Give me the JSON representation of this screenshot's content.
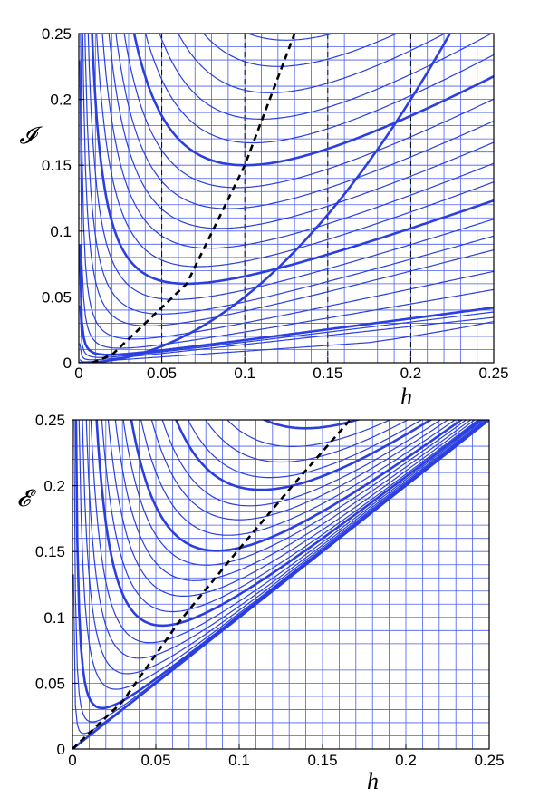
{
  "chart_data": [
    {
      "type": "line",
      "xlabel": "h",
      "ylabel": "𝓘",
      "xlim": [
        0,
        0.25
      ],
      "ylim": [
        0,
        0.25
      ],
      "x_ticks": [
        "0",
        "0.05",
        "0.1",
        "0.15",
        "0.2",
        "0.25"
      ],
      "y_ticks": [
        "0",
        "0.05",
        "0.1",
        "0.15",
        "0.2",
        "0.25"
      ],
      "grid": true,
      "colors": {
        "curve": "#2b3fe0",
        "grid": "#4a5ef0",
        "dashed": "#000000"
      },
      "vertical_dashed_x": [
        0.05,
        0.1,
        0.15,
        0.2
      ],
      "minimum_locus_dashed": [
        [
          0.008,
          0
        ],
        [
          0.02,
          0.006
        ],
        [
          0.065,
          0.06
        ],
        [
          0.1,
          0.15
        ],
        [
          0.13,
          0.25
        ]
      ],
      "envelope": {
        "x": [
          0.0,
          0.05,
          0.1,
          0.15,
          0.2,
          0.225
        ],
        "y": [
          0.0,
          0.0125,
          0.05,
          0.1125,
          0.2,
          0.25
        ]
      },
      "series": [
        {
          "min_x": 0.004,
          "min_y": 0.0007,
          "bold": false
        },
        {
          "min_x": 0.008,
          "min_y": 0.0022,
          "bold": false
        },
        {
          "min_x": 0.013,
          "min_y": 0.004,
          "bold": false
        },
        {
          "min_x": 0.018,
          "min_y": 0.006,
          "bold": true
        },
        {
          "min_x": 0.025,
          "min_y": 0.011,
          "bold": false
        },
        {
          "min_x": 0.033,
          "min_y": 0.018,
          "bold": false
        },
        {
          "min_x": 0.042,
          "min_y": 0.028,
          "bold": false
        },
        {
          "min_x": 0.05,
          "min_y": 0.037,
          "bold": false
        },
        {
          "min_x": 0.058,
          "min_y": 0.048,
          "bold": false
        },
        {
          "min_x": 0.065,
          "min_y": 0.06,
          "bold": true
        },
        {
          "min_x": 0.072,
          "min_y": 0.073,
          "bold": false
        },
        {
          "min_x": 0.079,
          "min_y": 0.087,
          "bold": false
        },
        {
          "min_x": 0.085,
          "min_y": 0.102,
          "bold": false
        },
        {
          "min_x": 0.09,
          "min_y": 0.117,
          "bold": false
        },
        {
          "min_x": 0.095,
          "min_y": 0.133,
          "bold": false
        },
        {
          "min_x": 0.1,
          "min_y": 0.15,
          "bold": true
        },
        {
          "min_x": 0.105,
          "min_y": 0.167,
          "bold": false
        },
        {
          "min_x": 0.11,
          "min_y": 0.185,
          "bold": false
        },
        {
          "min_x": 0.115,
          "min_y": 0.205,
          "bold": false
        },
        {
          "min_x": 0.12,
          "min_y": 0.225,
          "bold": false
        },
        {
          "min_x": 0.125,
          "min_y": 0.245,
          "bold": false
        }
      ]
    },
    {
      "type": "line",
      "xlabel": "h",
      "ylabel": "𝓔",
      "xlim": [
        0,
        0.25
      ],
      "ylim": [
        0,
        0.25
      ],
      "x_ticks": [
        "0",
        "0.05",
        "0.1",
        "0.15",
        "0.2",
        "0.25"
      ],
      "y_ticks": [
        "0",
        "0.05",
        "0.1",
        "0.15",
        "0.2",
        "0.25"
      ],
      "grid": true,
      "colors": {
        "curve": "#2b3fe0",
        "grid": "#4a5ef0",
        "dashed": "#000000"
      },
      "minimum_locus_dashed": [
        [
          0.0,
          0.0
        ],
        [
          0.03,
          0.036
        ],
        [
          0.063,
          0.095
        ],
        [
          0.1,
          0.152
        ],
        [
          0.132,
          0.2
        ],
        [
          0.168,
          0.252
        ]
      ],
      "envelope": {
        "x": [
          0.0,
          0.25
        ],
        "y": [
          0.0,
          0.25
        ]
      },
      "series": [
        {
          "min_x": 0.008,
          "min_y": 0.012,
          "bold": false
        },
        {
          "min_x": 0.014,
          "min_y": 0.021,
          "bold": false
        },
        {
          "min_x": 0.022,
          "min_y": 0.032,
          "bold": true
        },
        {
          "min_x": 0.03,
          "min_y": 0.046,
          "bold": false
        },
        {
          "min_x": 0.038,
          "min_y": 0.058,
          "bold": false
        },
        {
          "min_x": 0.046,
          "min_y": 0.07,
          "bold": false
        },
        {
          "min_x": 0.054,
          "min_y": 0.082,
          "bold": false
        },
        {
          "min_x": 0.062,
          "min_y": 0.095,
          "bold": true
        },
        {
          "min_x": 0.07,
          "min_y": 0.106,
          "bold": false
        },
        {
          "min_x": 0.078,
          "min_y": 0.118,
          "bold": false
        },
        {
          "min_x": 0.086,
          "min_y": 0.13,
          "bold": false
        },
        {
          "min_x": 0.094,
          "min_y": 0.142,
          "bold": false
        },
        {
          "min_x": 0.101,
          "min_y": 0.153,
          "bold": true
        },
        {
          "min_x": 0.109,
          "min_y": 0.165,
          "bold": false
        },
        {
          "min_x": 0.117,
          "min_y": 0.177,
          "bold": false
        },
        {
          "min_x": 0.125,
          "min_y": 0.188,
          "bold": false
        },
        {
          "min_x": 0.132,
          "min_y": 0.2,
          "bold": true
        },
        {
          "min_x": 0.14,
          "min_y": 0.21,
          "bold": false
        },
        {
          "min_x": 0.148,
          "min_y": 0.222,
          "bold": false
        },
        {
          "min_x": 0.156,
          "min_y": 0.234,
          "bold": false
        },
        {
          "min_x": 0.165,
          "min_y": 0.248,
          "bold": true
        }
      ]
    }
  ]
}
